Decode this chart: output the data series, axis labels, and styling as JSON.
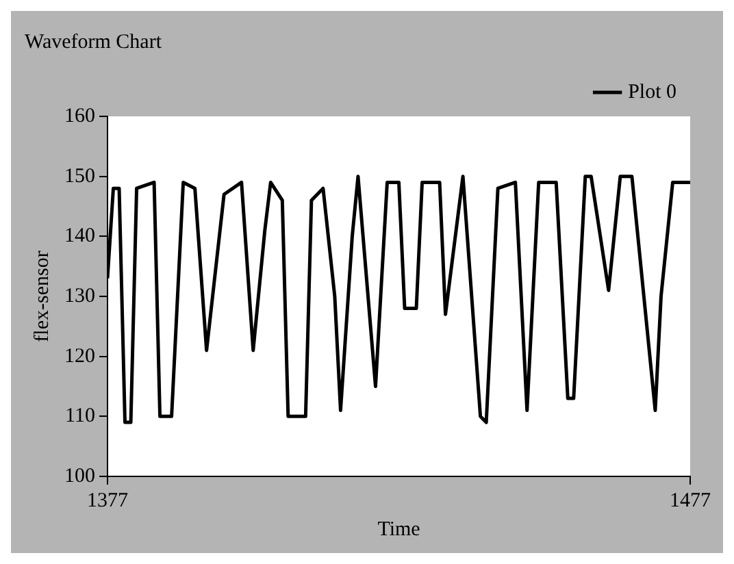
{
  "chart_data": {
    "type": "line",
    "title": "Waveform Chart",
    "xlabel": "Time",
    "ylabel": "flex-sensor",
    "x": [
      1377,
      1378,
      1379,
      1380,
      1381,
      1382,
      1385,
      1386,
      1388,
      1390,
      1392,
      1394,
      1397,
      1400,
      1402,
      1404,
      1405,
      1407,
      1408,
      1411,
      1412,
      1414,
      1416,
      1417,
      1419,
      1420,
      1423,
      1425,
      1427,
      1428,
      1430,
      1431,
      1434,
      1435,
      1438,
      1441,
      1442,
      1444,
      1447,
      1449,
      1451,
      1454,
      1456,
      1457,
      1459,
      1460,
      1463,
      1465,
      1467,
      1471,
      1472,
      1474,
      1477
    ],
    "series": [
      {
        "name": "Plot 0",
        "color": "#000000",
        "values": [
          133,
          148,
          148,
          109,
          109,
          148,
          149,
          110,
          110,
          149,
          148,
          121,
          147,
          149,
          121,
          141,
          149,
          146,
          110,
          110,
          146,
          148,
          130,
          111,
          140,
          150,
          115,
          149,
          149,
          128,
          128,
          149,
          149,
          127,
          150,
          110,
          109,
          148,
          149,
          111,
          149,
          149,
          113,
          113,
          150,
          150,
          131,
          150,
          150,
          111,
          130,
          149,
          149
        ]
      }
    ],
    "xlim": [
      1377,
      1477
    ],
    "xticks": [
      1377,
      1477
    ],
    "ylim": [
      100,
      160
    ],
    "yticks": [
      100,
      110,
      120,
      130,
      140,
      150,
      160
    ],
    "grid": false,
    "legend": "top right",
    "marker": "none",
    "line_style": "solid"
  }
}
